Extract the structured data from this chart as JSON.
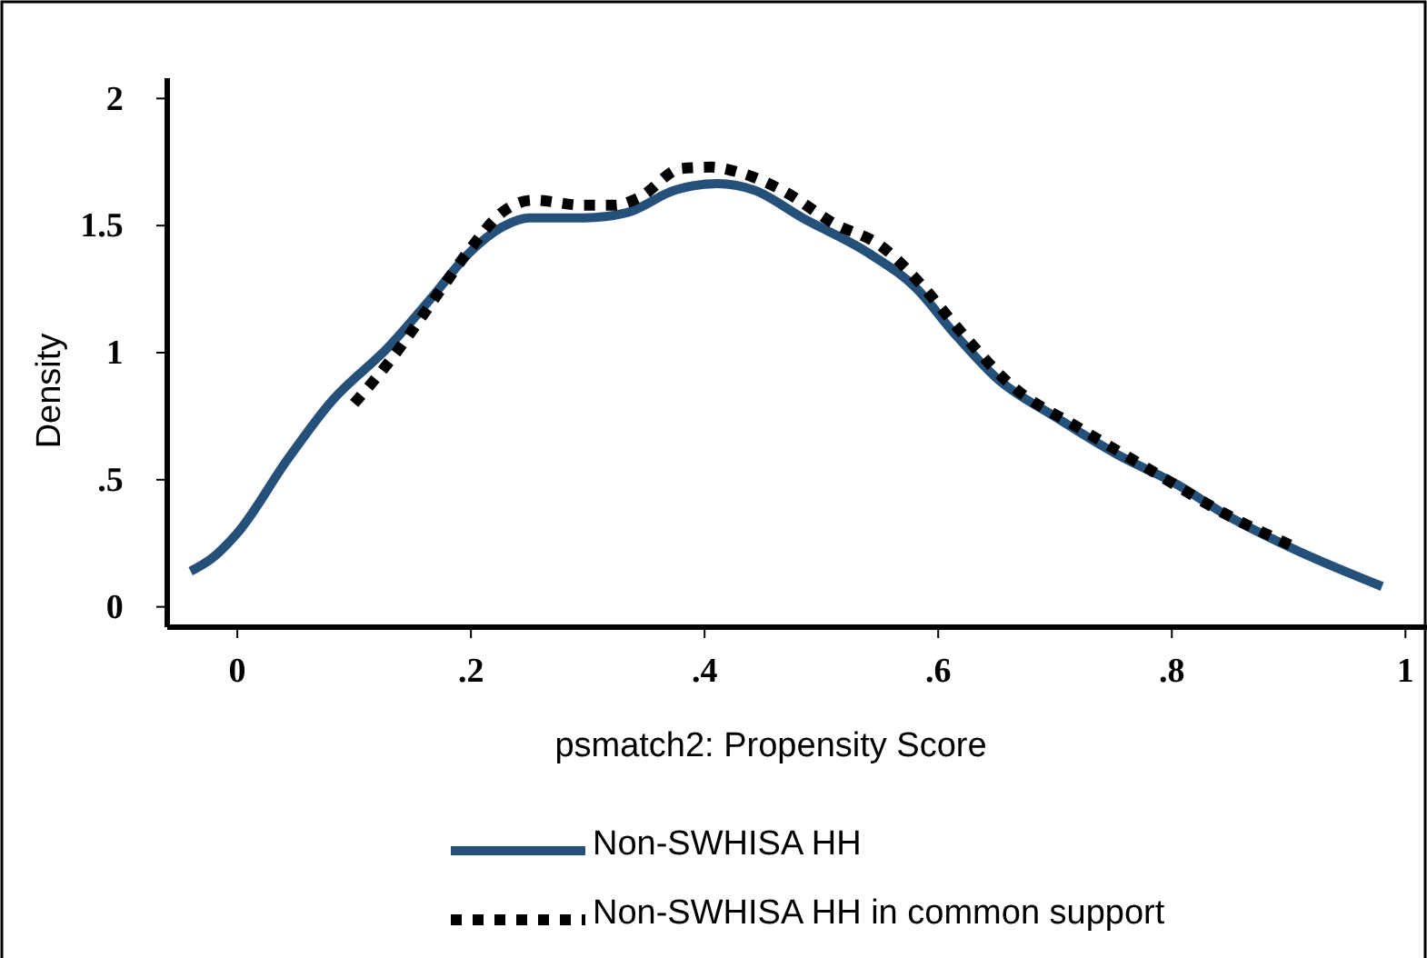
{
  "chart_data": {
    "type": "line",
    "xlabel": "psmatch2: Propensity Score",
    "ylabel": "Density",
    "xlim": [
      -0.06,
      1.02
    ],
    "ylim": [
      -0.08,
      2.08
    ],
    "xticks": [
      0,
      {
        "value": 0.2,
        "label": ".2"
      },
      {
        "value": 0.4,
        "label": ".4"
      },
      {
        "value": 0.6,
        "label": ".6"
      },
      {
        "value": 0.8,
        "label": ".8"
      },
      1
    ],
    "yticks": [
      0,
      {
        "value": 0.5,
        "label": ".5"
      },
      1,
      1.5,
      2
    ],
    "grid": false,
    "legend": "bottom",
    "series": [
      {
        "name": "Non-SWHISA  HH",
        "color": "#24507a",
        "line_style": "solid",
        "x": [
          -0.04,
          -0.022,
          0.0,
          0.043,
          0.079,
          0.131,
          0.167,
          0.198,
          0.229,
          0.25,
          0.297,
          0.333,
          0.375,
          0.411,
          0.442,
          0.484,
          0.541,
          0.582,
          0.613,
          0.65,
          0.701,
          0.753,
          0.805,
          0.847,
          0.903,
          0.98
        ],
        "values": [
          0.14,
          0.19,
          0.29,
          0.58,
          0.8,
          1.03,
          1.22,
          1.39,
          1.5,
          1.53,
          1.53,
          1.55,
          1.64,
          1.665,
          1.64,
          1.53,
          1.39,
          1.25,
          1.08,
          0.9,
          0.745,
          0.6,
          0.48,
          0.36,
          0.23,
          0.08
        ]
      },
      {
        "name": "Non-SWHISA HH in common support",
        "color": "#000000",
        "line_style": "dotted",
        "x": [
          0.1,
          0.131,
          0.173,
          0.198,
          0.229,
          0.253,
          0.297,
          0.323,
          0.344,
          0.38,
          0.406,
          0.429,
          0.47,
          0.51,
          0.551,
          0.585,
          0.616,
          0.663,
          0.722,
          0.781,
          0.844,
          0.903
        ],
        "values": [
          0.8,
          0.97,
          1.24,
          1.4,
          1.56,
          1.6,
          1.58,
          1.58,
          1.61,
          1.725,
          1.73,
          1.71,
          1.63,
          1.51,
          1.42,
          1.27,
          1.1,
          0.87,
          0.7,
          0.54,
          0.37,
          0.24
        ]
      }
    ]
  }
}
